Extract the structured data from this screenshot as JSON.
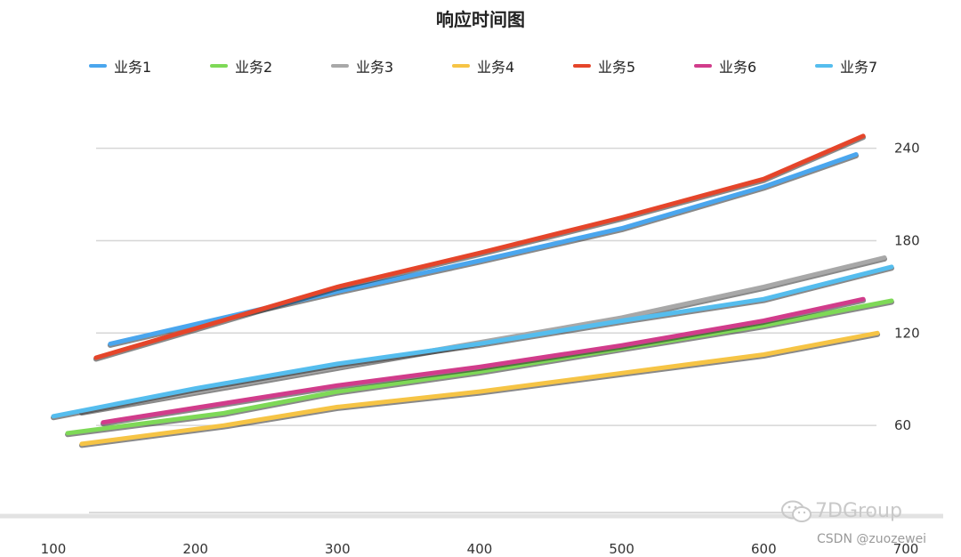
{
  "chart_data": {
    "type": "line",
    "title": "响应时间图",
    "xlabel": "",
    "ylabel": "",
    "x_ticks": [
      100,
      200,
      300,
      400,
      500,
      600,
      700
    ],
    "y_ticks": [
      60,
      120,
      180,
      240
    ],
    "y_axis_side": "right",
    "xlim": [
      100,
      700
    ],
    "ylim": [
      0,
      260
    ],
    "grid": true,
    "legend_position": "top",
    "series": [
      {
        "name": "业务1",
        "color": "#4aa6ee",
        "x": [
          140,
          300,
          400,
          500,
          600,
          665
        ],
        "y": [
          113,
          147,
          167,
          188,
          215,
          236
        ]
      },
      {
        "name": "业务2",
        "color": "#7ed957",
        "x": [
          110,
          220,
          300,
          400,
          500,
          600,
          690
        ],
        "y": [
          55,
          68,
          82,
          95,
          110,
          125,
          141
        ]
      },
      {
        "name": "业务3",
        "color": "#a8a8a8",
        "x": [
          120,
          300,
          400,
          500,
          600,
          685
        ],
        "y": [
          69,
          98,
          114,
          130,
          150,
          169
        ]
      },
      {
        "name": "业务4",
        "color": "#f6c445",
        "x": [
          120,
          220,
          300,
          400,
          500,
          600,
          680
        ],
        "y": [
          48,
          60,
          72,
          82,
          94,
          106,
          120
        ]
      },
      {
        "name": "业务5",
        "color": "#e5452a",
        "x": [
          130,
          300,
          400,
          500,
          600,
          670
        ],
        "y": [
          104,
          150,
          172,
          195,
          220,
          248
        ]
      },
      {
        "name": "业务6",
        "color": "#d13c8b",
        "x": [
          135,
          300,
          400,
          500,
          600,
          670
        ],
        "y": [
          62,
          86,
          98,
          112,
          128,
          142
        ]
      },
      {
        "name": "业务7",
        "color": "#55bdee",
        "x": [
          100,
          200,
          300,
          400,
          500,
          600,
          690
        ],
        "y": [
          66,
          84,
          100,
          113,
          128,
          142,
          163
        ]
      }
    ]
  },
  "watermark": {
    "brand": "7DGroup",
    "source": "CSDN @zuozewei"
  }
}
